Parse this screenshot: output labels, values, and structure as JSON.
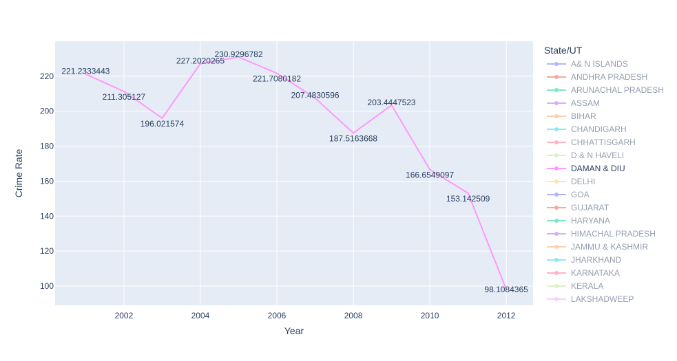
{
  "chart_data": {
    "type": "line",
    "xlabel": "Year",
    "ylabel": "Crime Rate",
    "xlim": [
      2000.2,
      2012.7
    ],
    "ylim": [
      89,
      240
    ],
    "x_ticks": [
      2002,
      2004,
      2006,
      2008,
      2010,
      2012
    ],
    "y_ticks": [
      100,
      120,
      140,
      160,
      180,
      200,
      220
    ],
    "grid": true,
    "legend_title": "State/UT",
    "legend_position": "right",
    "highlighted_series": "DAMAN & DIU",
    "series": [
      {
        "name": "DAMAN & DIU",
        "color": "#FF97FF",
        "x": [
          2001,
          2002,
          2003,
          2004,
          2005,
          2006,
          2007,
          2008,
          2009,
          2010,
          2011,
          2012
        ],
        "y": [
          221.2333443,
          211.305127,
          196.021574,
          227.2020265,
          230.9296782,
          221.7080182,
          207.4830596,
          187.5163668,
          203.4447523,
          166.6549097,
          153.142509,
          98.1084365
        ],
        "labels": [
          "221.2333443",
          "211.305127",
          "196.021574",
          "227.2020265",
          "230.9296782",
          "221.7080182",
          "207.4830596",
          "187.5163668",
          "203.4447523",
          "166.6549097",
          "153.142509",
          "98.1084365"
        ]
      }
    ],
    "legend": [
      {
        "name": "A& N ISLANDS",
        "color": "#636EFA"
      },
      {
        "name": "ANDHRA PRADESH",
        "color": "#EF553B"
      },
      {
        "name": "ARUNACHAL PRADESH",
        "color": "#00CC96"
      },
      {
        "name": "ASSAM",
        "color": "#AB63FA"
      },
      {
        "name": "BIHAR",
        "color": "#FFA15A"
      },
      {
        "name": "CHANDIGARH",
        "color": "#19D3F3"
      },
      {
        "name": "CHHATTISGARH",
        "color": "#FF6692"
      },
      {
        "name": "D & N HAVELI",
        "color": "#B6E880"
      },
      {
        "name": "DAMAN & DIU",
        "color": "#FF97FF"
      },
      {
        "name": "DELHI",
        "color": "#FECB52"
      },
      {
        "name": "GOA",
        "color": "#636EFA"
      },
      {
        "name": "GUJARAT",
        "color": "#EF553B"
      },
      {
        "name": "HARYANA",
        "color": "#00CC96"
      },
      {
        "name": "HIMACHAL PRADESH",
        "color": "#AB63FA"
      },
      {
        "name": "JAMMU & KASHMIR",
        "color": "#FFA15A"
      },
      {
        "name": "JHARKHAND",
        "color": "#19D3F3"
      },
      {
        "name": "KARNATAKA",
        "color": "#FF6692"
      },
      {
        "name": "KERALA",
        "color": "#B6E880"
      },
      {
        "name": "LAKSHADWEEP",
        "color": "#FF97FF"
      }
    ]
  }
}
